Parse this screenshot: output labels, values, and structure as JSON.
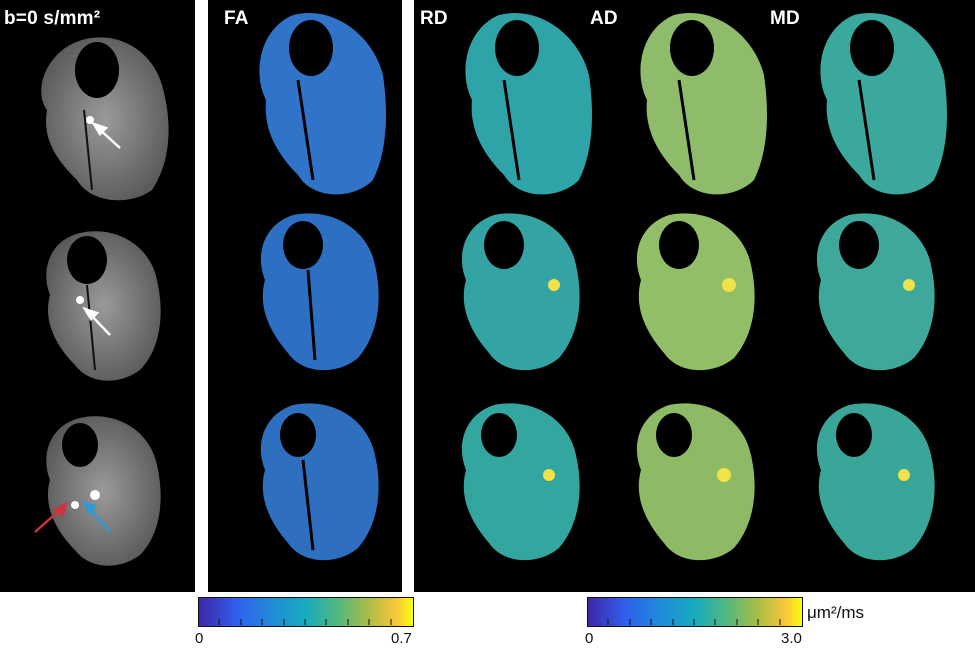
{
  "labels": {
    "b0": "b=0 s/mm²",
    "fa": "FA",
    "rd": "RD",
    "ad": "AD",
    "md": "MD"
  },
  "colorbars": {
    "fa": {
      "min": "0",
      "max": "0.7"
    },
    "diffusivity": {
      "min": "0",
      "max": "3.0",
      "unit": "μm²/ms"
    }
  },
  "colors": {
    "background": "#000000",
    "fa_tissue": "#2f74c8",
    "rd_tissue": "#2ea4a8",
    "ad_tissue": "#8fbc6a",
    "md_tissue": "#3aa89c",
    "b0_tissue": "#7a7a7a",
    "arrow_white": "#ffffff",
    "arrow_red": "#d2323c",
    "arrow_blue": "#2a9bd6",
    "highlight": "#f2e24a"
  },
  "arrows": [
    "white",
    "white",
    "red",
    "blue"
  ]
}
